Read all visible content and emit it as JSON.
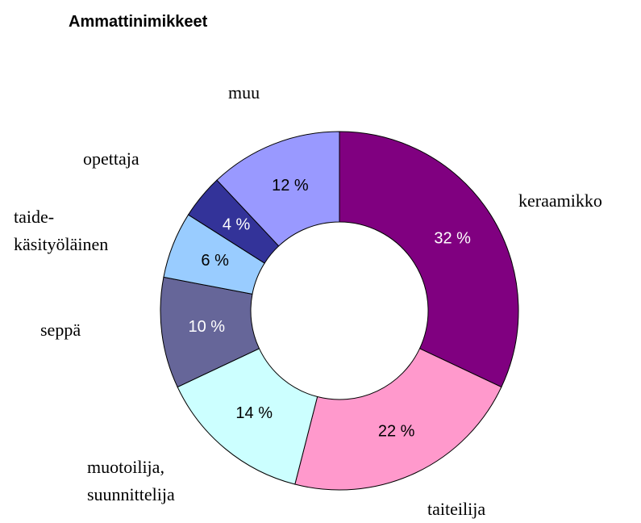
{
  "chart_data": {
    "type": "donut",
    "title": "Ammattinimikkeet",
    "categories": [
      "keraamikko",
      "taiteilija",
      "muotoilija,\nsuunnittelija",
      "seppä",
      "taide-\nkäsityöläinen",
      "opettaja",
      "muu"
    ],
    "values": [
      32,
      22,
      14,
      10,
      6,
      4,
      12
    ],
    "value_labels": [
      "32 %",
      "22 %",
      "14 %",
      "10 %",
      "6 %",
      "4 %",
      "12 %"
    ],
    "colors": [
      "#800080",
      "#ff99cc",
      "#ccffff",
      "#666699",
      "#99ccff",
      "#333399",
      "#9999ff"
    ]
  }
}
